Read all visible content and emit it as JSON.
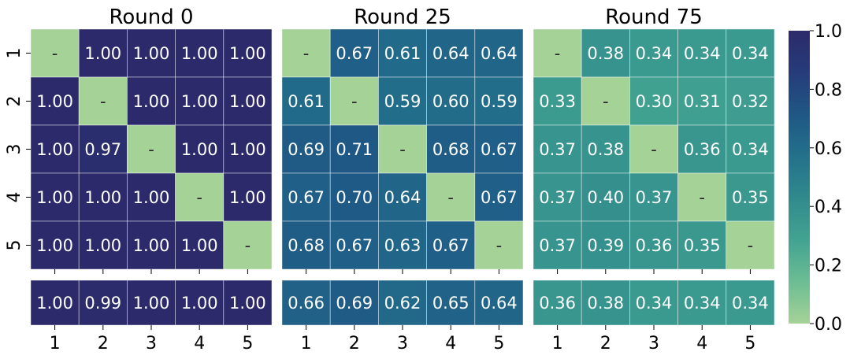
{
  "chart_data": {
    "type": "heatmap",
    "row_labels": [
      "1",
      "2",
      "3",
      "4",
      "5"
    ],
    "col_labels": [
      "1",
      "2",
      "3",
      "4",
      "5"
    ],
    "diagonal_mark": "-",
    "color_scale": {
      "min": 0.0,
      "max": 1.0,
      "ticks": [
        "0.0",
        "0.2",
        "0.4",
        "0.6",
        "0.8",
        "1.0"
      ],
      "palette": "crest",
      "stops": [
        "#a5d297",
        "#6cbd94",
        "#42a391",
        "#308a8c",
        "#23718b",
        "#1f5785",
        "#263c7a",
        "#2c2a6b"
      ],
      "diagonal_color": "#a5d297"
    },
    "panels": [
      {
        "title": "Round 0",
        "matrix": [
          [
            null,
            1.0,
            1.0,
            1.0,
            1.0
          ],
          [
            1.0,
            null,
            1.0,
            1.0,
            1.0
          ],
          [
            1.0,
            0.97,
            null,
            1.0,
            1.0
          ],
          [
            1.0,
            1.0,
            1.0,
            null,
            1.0
          ],
          [
            1.0,
            1.0,
            1.0,
            1.0,
            null
          ]
        ],
        "summary": [
          1.0,
          0.99,
          1.0,
          1.0,
          1.0
        ]
      },
      {
        "title": "Round 25",
        "matrix": [
          [
            null,
            0.67,
            0.61,
            0.64,
            0.64
          ],
          [
            0.61,
            null,
            0.59,
            0.6,
            0.59
          ],
          [
            0.69,
            0.71,
            null,
            0.68,
            0.67
          ],
          [
            0.67,
            0.7,
            0.64,
            null,
            0.67
          ],
          [
            0.68,
            0.67,
            0.63,
            0.67,
            null
          ]
        ],
        "summary": [
          0.66,
          0.69,
          0.62,
          0.65,
          0.64
        ]
      },
      {
        "title": "Round 75",
        "matrix": [
          [
            null,
            0.38,
            0.34,
            0.34,
            0.34
          ],
          [
            0.33,
            null,
            0.3,
            0.31,
            0.32
          ],
          [
            0.37,
            0.38,
            null,
            0.36,
            0.34
          ],
          [
            0.37,
            0.4,
            0.37,
            null,
            0.35
          ],
          [
            0.37,
            0.39,
            0.36,
            0.35,
            null
          ]
        ],
        "summary": [
          0.36,
          0.38,
          0.34,
          0.34,
          0.34
        ]
      }
    ]
  }
}
